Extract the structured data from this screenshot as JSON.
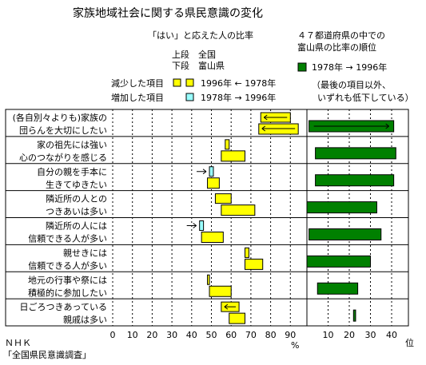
{
  "title": "家族地域社会に関する県民意識の変化",
  "left_header": "「はい」と応えた人の比率",
  "right_header_line1": "４７都道府県の中での",
  "right_header_line2": "富山県の比率の順位",
  "row_key": {
    "upper": "上段",
    "lower": "下段",
    "national": "全国",
    "toyama": "富山県"
  },
  "legend": {
    "decreased": "減少した項目",
    "increased": "増加した項目",
    "decreased_years": "1996年 ← 1978年",
    "increased_years": "1978年 → 1996年",
    "rank_years": "1978年 → 1996年",
    "rank_note_line1": "（最後の項目以外、",
    "rank_note_line2": "いずれも低下している）"
  },
  "colors": {
    "national_bar": "#ffff00",
    "toyama_bar": "#ffff00",
    "increase_marker": "#99ffff",
    "rank_bar": "#008000",
    "grid": "#000000"
  },
  "source_line1": "ＮＨＫ",
  "source_line2": "「全国県民意識調査」",
  "chart_data": [
    {
      "type": "bar",
      "subtype": "range-bar",
      "xlabel": "%",
      "xlim": [
        0,
        100
      ],
      "xticks": [
        "0",
        "10",
        "20",
        "30",
        "40",
        "50",
        "60",
        "70",
        "80",
        "90"
      ],
      "items": [
        {
          "label": [
            "(各自別々よりも)家族の",
            "団らんを大切にしたい"
          ],
          "national": {
            "start": 75,
            "end": 90,
            "direction": "decrease"
          },
          "toyama": {
            "start": 74,
            "end": 94,
            "direction": "decrease"
          }
        },
        {
          "label": [
            "家の祖先には強い",
            "心のつながりを感じる"
          ],
          "national": {
            "start": 57,
            "end": 59,
            "direction": "decrease"
          },
          "toyama": {
            "start": 55,
            "end": 67,
            "direction": "decrease"
          }
        },
        {
          "label": [
            "自分の親を手本に",
            "生きてゆきたい"
          ],
          "national": {
            "start": 49,
            "end": 51,
            "direction": "increase"
          },
          "toyama": {
            "start": 48,
            "end": 54,
            "direction": "decrease"
          }
        },
        {
          "label": [
            "隣近所の人との",
            "つきあいは多い"
          ],
          "national": {
            "start": 52,
            "end": 60,
            "direction": "decrease"
          },
          "toyama": {
            "start": 55,
            "end": 72,
            "direction": "decrease"
          }
        },
        {
          "label": [
            "隣近所の人には",
            "信頼できる人が多い"
          ],
          "national": {
            "start": 44,
            "end": 46,
            "direction": "increase"
          },
          "toyama": {
            "start": 45,
            "end": 56,
            "direction": "decrease"
          }
        },
        {
          "label": [
            "親せきには",
            "信頼できる人が多い"
          ],
          "national": {
            "start": 67,
            "end": 69,
            "direction": "decrease"
          },
          "toyama": {
            "start": 67,
            "end": 76,
            "direction": "decrease"
          }
        },
        {
          "label": [
            "地元の行事や祭には",
            "積極的に参加したい"
          ],
          "national": {
            "start": 48,
            "end": 49,
            "direction": "decrease"
          },
          "toyama": {
            "start": 49,
            "end": 60,
            "direction": "decrease"
          }
        },
        {
          "label": [
            "日ごろつきあっている",
            "親戚は多い"
          ],
          "national": {
            "start": 55,
            "end": 64,
            "direction": "decrease"
          },
          "toyama": {
            "start": 59,
            "end": 67,
            "direction": "decrease"
          }
        }
      ]
    },
    {
      "type": "bar",
      "subtype": "rank-range",
      "xlabel": "位",
      "xlim": [
        0,
        47
      ],
      "xticks": [
        "10",
        "20",
        "30",
        "40"
      ],
      "ranks": [
        {
          "from": 1,
          "to": 41
        },
        {
          "from": 4,
          "to": 42
        },
        {
          "from": 4,
          "to": 41
        },
        {
          "from": 0,
          "to": 33
        },
        {
          "from": 1,
          "to": 35
        },
        {
          "from": 0,
          "to": 30
        },
        {
          "from": 5,
          "to": 24
        },
        {
          "from": 22,
          "to": 23
        }
      ]
    }
  ]
}
